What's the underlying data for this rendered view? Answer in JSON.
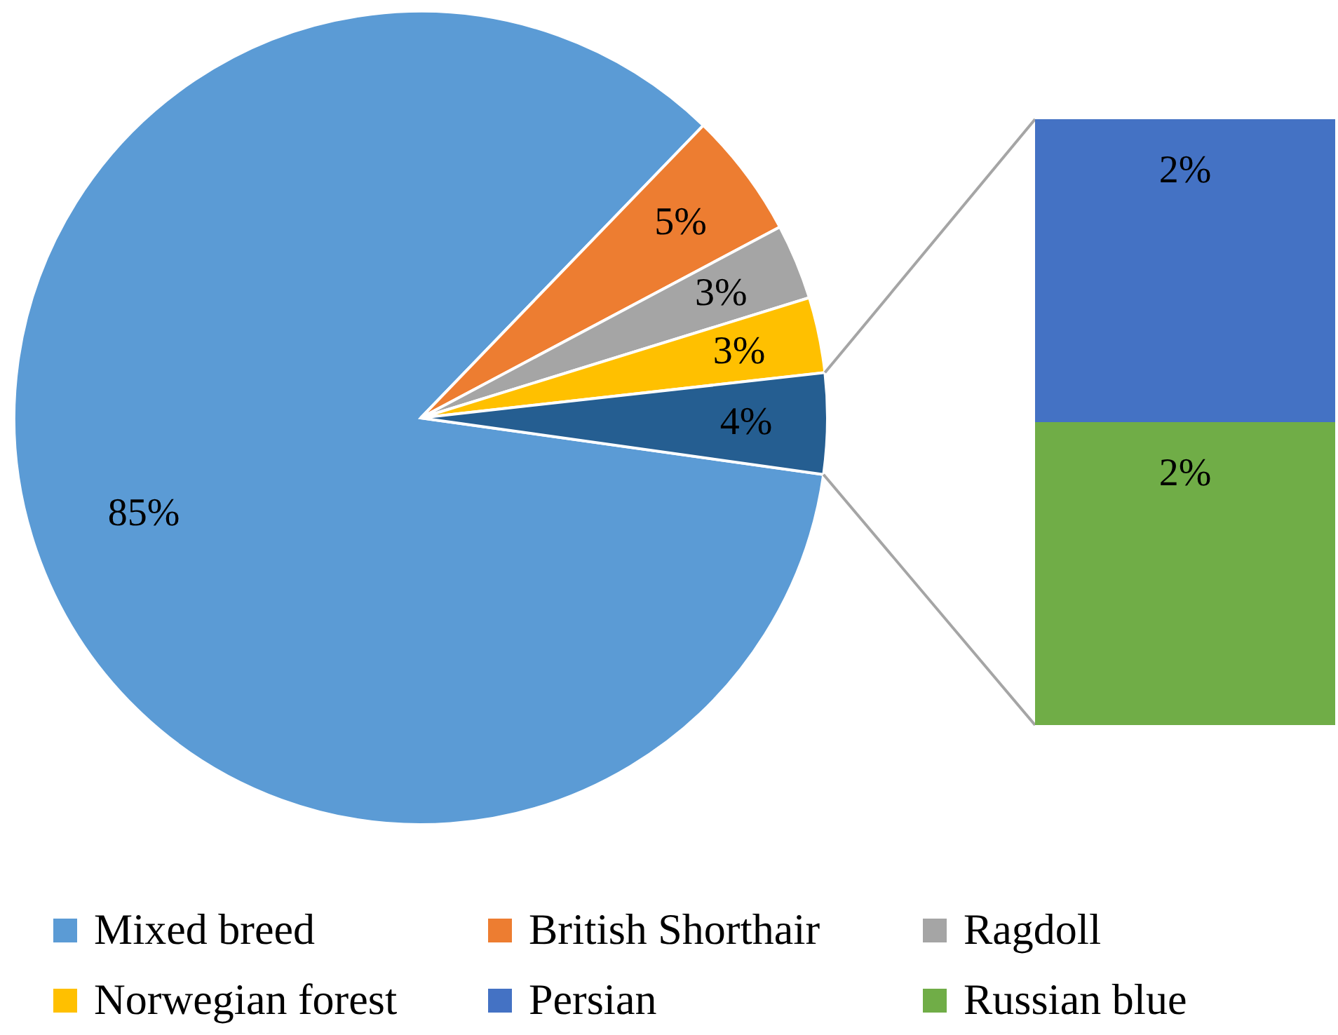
{
  "chart_data": [
    {
      "type": "pie",
      "categories": [
        "Mixed breed",
        "British Shorthair",
        "Ragdoll",
        "Norwegian forest",
        null
      ],
      "values": [
        85,
        5,
        3,
        3,
        4
      ],
      "colors": [
        "#5b9bd5",
        "#ed7d31",
        "#a5a5a5",
        "#ffc000",
        "#255e91"
      ],
      "value_labels": [
        "85%",
        "5%",
        "3%",
        "3%",
        "4%"
      ],
      "legend": "bottom"
    },
    {
      "type": "bar",
      "stacked": true,
      "data_labels": true,
      "categories": [
        null
      ],
      "series": [
        {
          "name": "Russian blue",
          "color": "#70ad47",
          "values": [
            2
          ],
          "value_labels": [
            "2%"
          ]
        },
        {
          "name": "Persian",
          "color": "#4472c4",
          "values": [
            2
          ],
          "value_labels": [
            "2%"
          ]
        }
      ],
      "legend": "bottom"
    }
  ]
}
